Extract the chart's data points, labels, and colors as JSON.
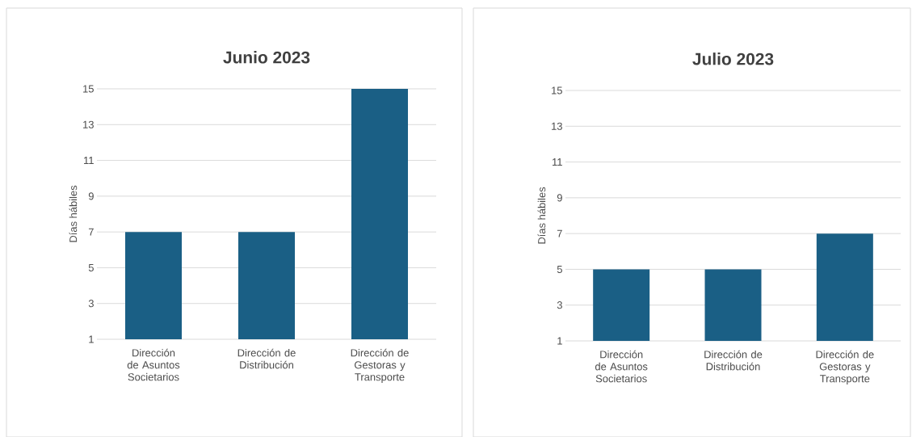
{
  "chart_data": [
    {
      "type": "bar",
      "title": "Junio 2023",
      "ylabel": "Días hábiles",
      "categories": [
        "Dirección de Asuntos Societarios",
        "Dirección de Distribución",
        "Dirección de Gestoras y Transporte"
      ],
      "values": [
        7,
        7,
        15
      ],
      "color": "#1a5f85",
      "ylim": [
        1,
        15
      ],
      "yticks": [
        1,
        3,
        5,
        7,
        9,
        11,
        13,
        15
      ],
      "grid": "y"
    },
    {
      "type": "bar",
      "title": "Julio 2023",
      "ylabel": "Días hábiles",
      "categories": [
        "Dirección de Asuntos Societarios",
        "Dirección de Distribución",
        "Dirección de Gestoras y Transporte"
      ],
      "values": [
        5,
        5,
        7
      ],
      "color": "#1a5f85",
      "ylim": [
        1,
        15
      ],
      "yticks": [
        1,
        3,
        5,
        7,
        9,
        11,
        13,
        15
      ],
      "grid": "y"
    }
  ]
}
